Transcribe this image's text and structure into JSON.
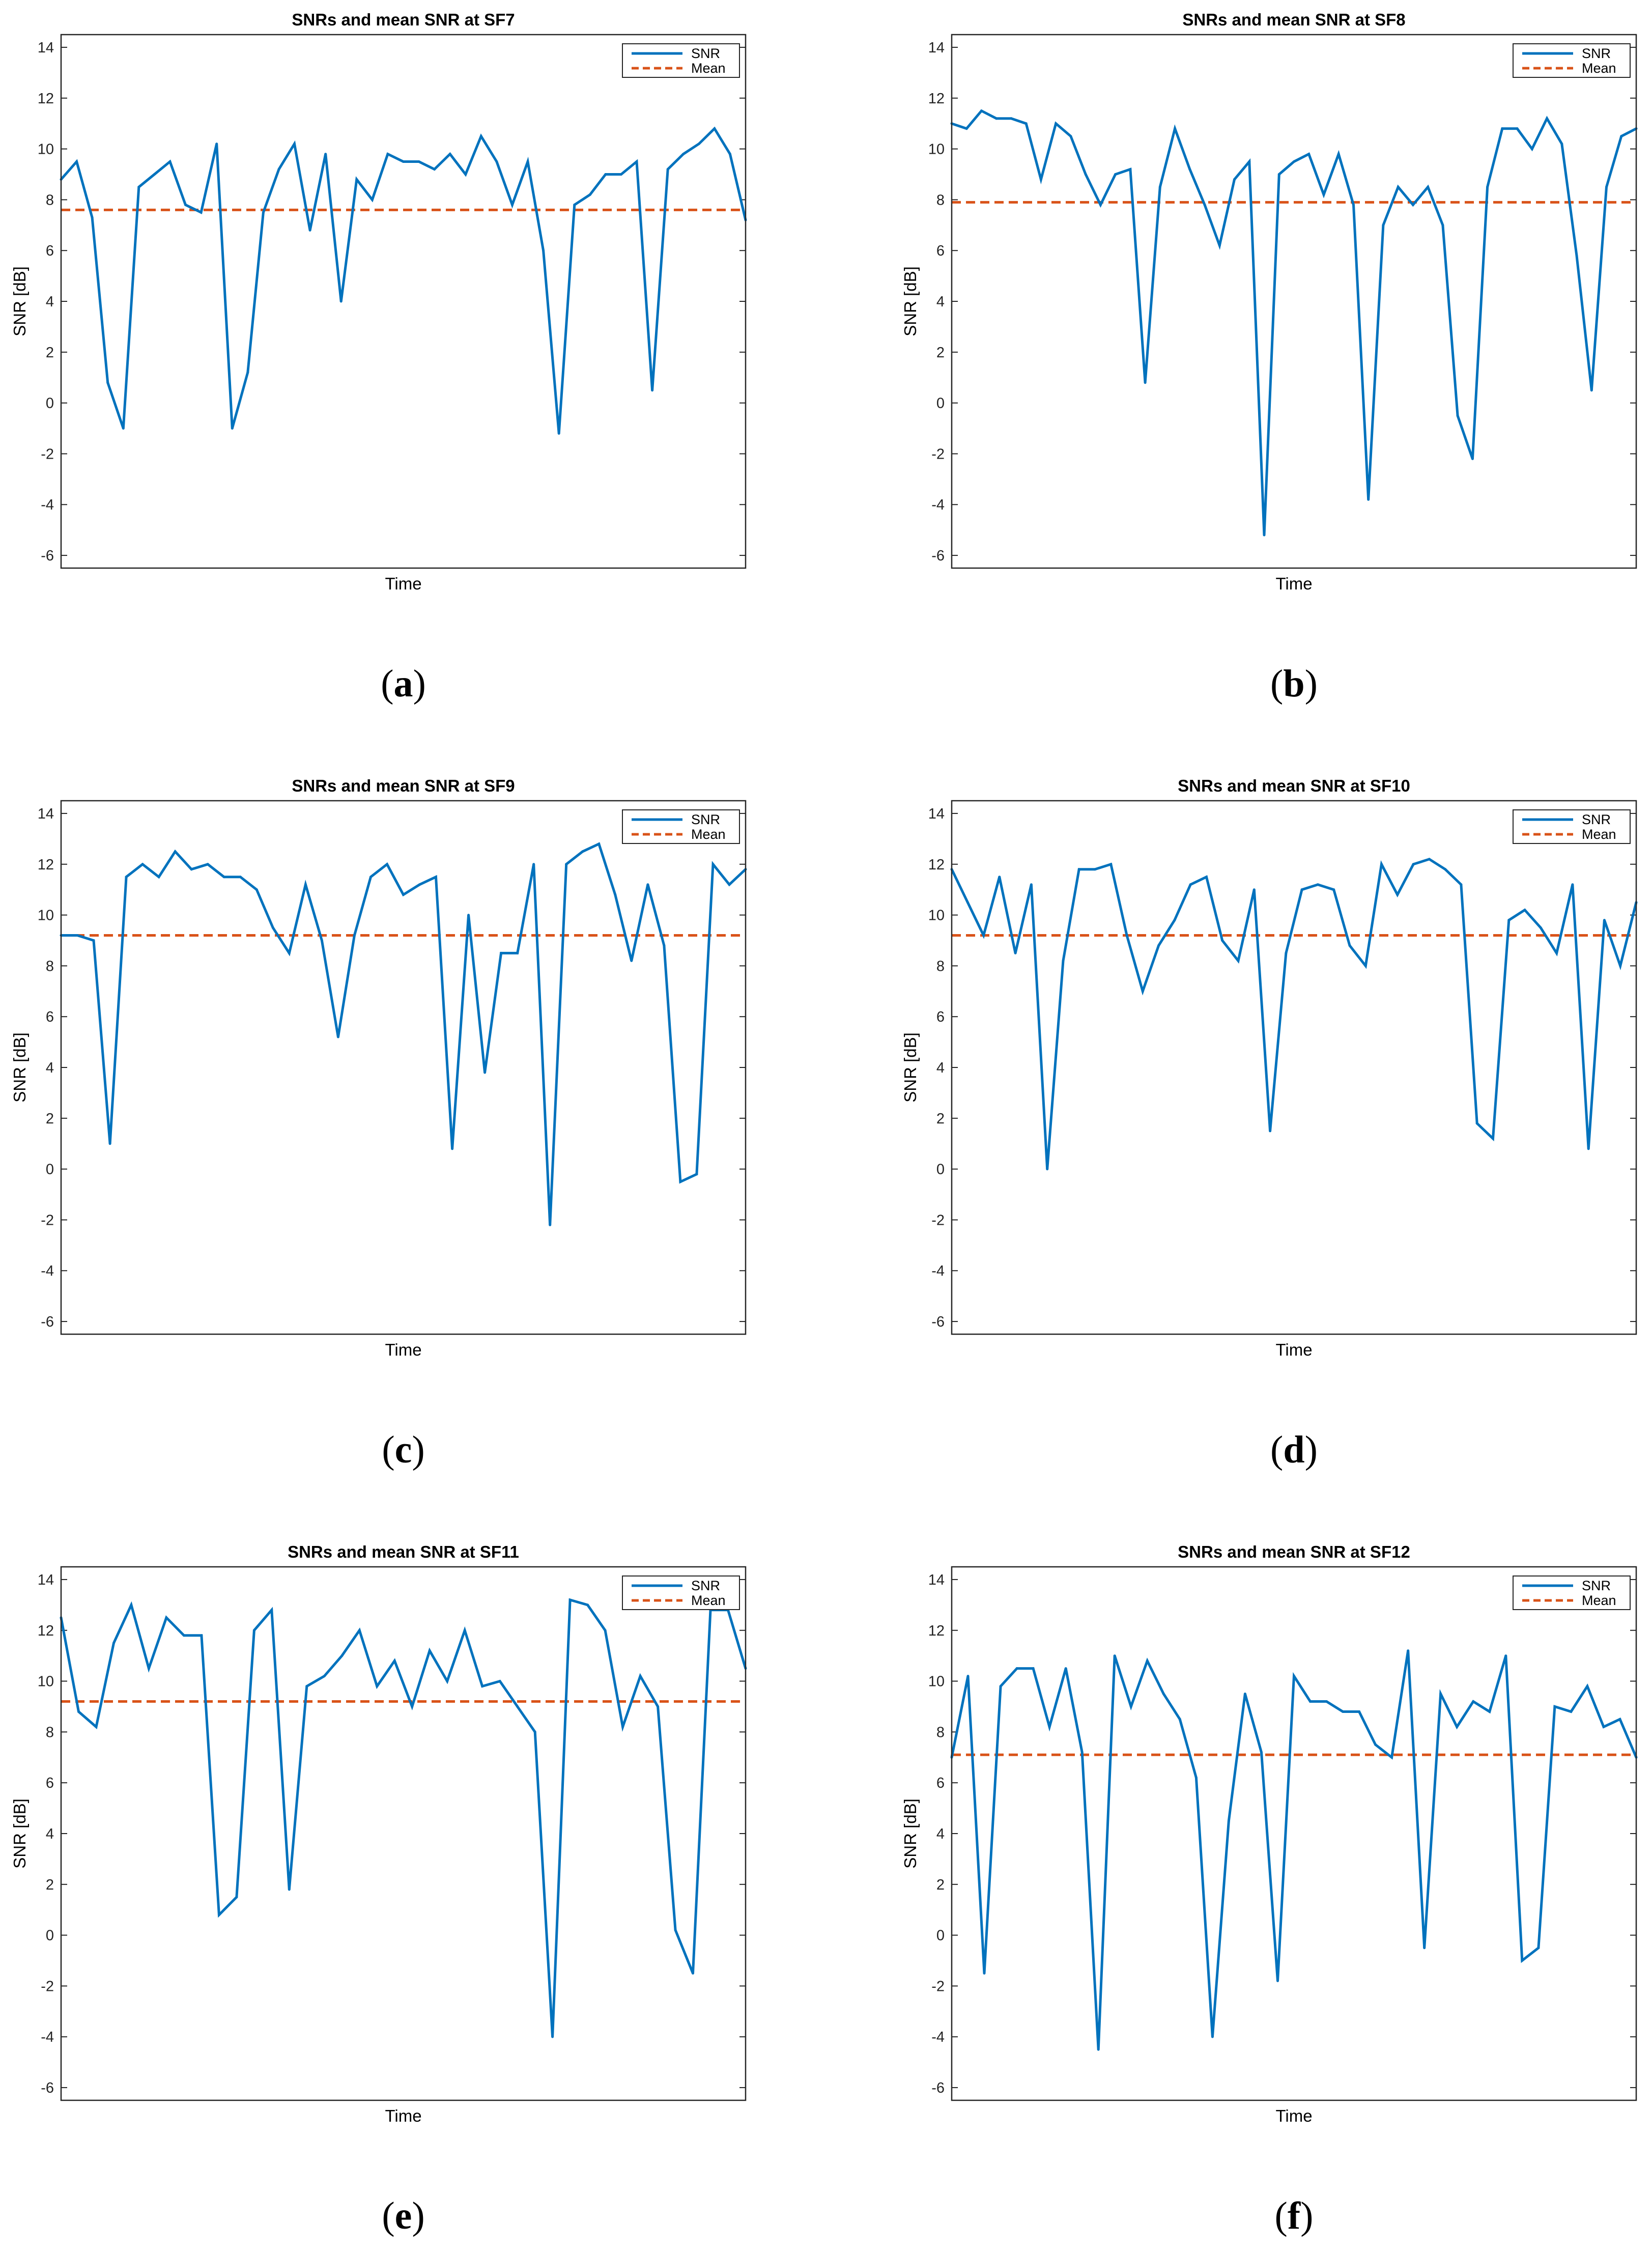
{
  "chart_data": [
    {
      "id": "a",
      "type": "line",
      "title": "SNRs and mean SNR at SF7",
      "xlabel": "Time",
      "ylabel": "SNR [dB]",
      "ylim": [
        -6.5,
        14.5
      ],
      "yticks": [
        -6,
        -4,
        -2,
        0,
        2,
        4,
        6,
        8,
        10,
        12,
        14
      ],
      "legend": {
        "position": "top-right",
        "entries": [
          "SNR",
          "Mean"
        ]
      },
      "caption": {
        "letter": "a",
        "open": "(",
        "close": ")"
      },
      "series": [
        {
          "name": "SNR",
          "color": "#0072BD",
          "style": "solid",
          "values": [
            8.8,
            9.5,
            7.3,
            0.8,
            -1.0,
            8.5,
            9.0,
            9.5,
            7.8,
            7.5,
            10.2,
            -1.0,
            1.2,
            7.5,
            9.2,
            10.2,
            6.8,
            9.8,
            4.0,
            8.8,
            8.0,
            9.8,
            9.5,
            9.5,
            9.2,
            9.8,
            9.0,
            10.5,
            9.5,
            7.8,
            9.5,
            6.0,
            -1.2,
            7.8,
            8.2,
            9.0,
            9.0,
            9.5,
            0.5,
            9.2,
            9.8,
            10.2,
            10.8,
            9.8,
            7.2
          ]
        },
        {
          "name": "Mean",
          "color": "#D95319",
          "style": "dashed",
          "value": 7.6
        }
      ]
    },
    {
      "id": "b",
      "type": "line",
      "title": "SNRs and mean SNR at SF8",
      "xlabel": "Time",
      "ylabel": "SNR [dB]",
      "ylim": [
        -6.5,
        14.5
      ],
      "yticks": [
        -6,
        -4,
        -2,
        0,
        2,
        4,
        6,
        8,
        10,
        12,
        14
      ],
      "legend": {
        "position": "top-right",
        "entries": [
          "SNR",
          "Mean"
        ]
      },
      "caption": {
        "letter": "b",
        "open": "(",
        "close": ")"
      },
      "series": [
        {
          "name": "SNR",
          "color": "#0072BD",
          "style": "solid",
          "values": [
            11.0,
            10.8,
            11.5,
            11.2,
            11.2,
            11.0,
            8.8,
            11.0,
            10.5,
            9.0,
            7.8,
            9.0,
            9.2,
            0.8,
            8.5,
            10.8,
            9.2,
            7.8,
            6.2,
            8.8,
            9.5,
            -5.2,
            9.0,
            9.5,
            9.8,
            8.2,
            9.8,
            7.8,
            -3.8,
            7.0,
            8.5,
            7.8,
            8.5,
            7.0,
            -0.5,
            -2.2,
            8.5,
            10.8,
            10.8,
            10.0,
            11.2,
            10.2,
            5.8,
            0.5,
            8.5,
            10.5,
            10.8
          ]
        },
        {
          "name": "Mean",
          "color": "#D95319",
          "style": "dashed",
          "value": 7.9
        }
      ]
    },
    {
      "id": "c",
      "type": "line",
      "title": "SNRs and mean SNR at SF9",
      "xlabel": "Time",
      "ylabel": "SNR [dB]",
      "ylim": [
        -6.5,
        14.5
      ],
      "yticks": [
        -6,
        -4,
        -2,
        0,
        2,
        4,
        6,
        8,
        10,
        12,
        14
      ],
      "legend": {
        "position": "top-right",
        "entries": [
          "SNR",
          "Mean"
        ]
      },
      "caption": {
        "letter": "c",
        "open": "(",
        "close": ")"
      },
      "series": [
        {
          "name": "SNR",
          "color": "#0072BD",
          "style": "solid",
          "values": [
            9.2,
            9.2,
            9.0,
            1.0,
            11.5,
            12.0,
            11.5,
            12.5,
            11.8,
            12.0,
            11.5,
            11.5,
            11.0,
            9.5,
            8.5,
            11.2,
            9.0,
            5.2,
            9.2,
            11.5,
            12.0,
            10.8,
            11.2,
            11.5,
            0.8,
            10.0,
            3.8,
            8.5,
            8.5,
            12.0,
            -2.2,
            12.0,
            12.5,
            12.8,
            10.8,
            8.2,
            11.2,
            8.8,
            -0.5,
            -0.2,
            12.0,
            11.2,
            11.8
          ]
        },
        {
          "name": "Mean",
          "color": "#D95319",
          "style": "dashed",
          "value": 9.2
        }
      ]
    },
    {
      "id": "d",
      "type": "line",
      "title": "SNRs and mean SNR at SF10",
      "xlabel": "Time",
      "ylabel": "SNR [dB]",
      "ylim": [
        -6.5,
        14.5
      ],
      "yticks": [
        -6,
        -4,
        -2,
        0,
        2,
        4,
        6,
        8,
        10,
        12,
        14
      ],
      "legend": {
        "position": "top-right",
        "entries": [
          "SNR",
          "Mean"
        ]
      },
      "caption": {
        "letter": "d",
        "open": "(",
        "close": ")"
      },
      "series": [
        {
          "name": "SNR",
          "color": "#0072BD",
          "style": "solid",
          "values": [
            11.8,
            10.5,
            9.2,
            11.5,
            8.5,
            11.2,
            0.0,
            8.2,
            11.8,
            11.8,
            12.0,
            9.2,
            7.0,
            8.8,
            9.8,
            11.2,
            11.5,
            9.0,
            8.2,
            11.0,
            1.5,
            8.5,
            11.0,
            11.2,
            11.0,
            8.8,
            8.0,
            12.0,
            10.8,
            12.0,
            12.2,
            11.8,
            11.2,
            1.8,
            1.2,
            9.8,
            10.2,
            9.5,
            8.5,
            11.2,
            0.8,
            9.8,
            8.0,
            10.5
          ]
        },
        {
          "name": "Mean",
          "color": "#D95319",
          "style": "dashed",
          "value": 9.2
        }
      ]
    },
    {
      "id": "e",
      "type": "line",
      "title": "SNRs and mean SNR at SF11",
      "xlabel": "Time",
      "ylabel": "SNR [dB]",
      "ylim": [
        -6.5,
        14.5
      ],
      "yticks": [
        -6,
        -4,
        -2,
        0,
        2,
        4,
        6,
        8,
        10,
        12,
        14
      ],
      "legend": {
        "position": "top-right",
        "entries": [
          "SNR",
          "Mean"
        ]
      },
      "caption": {
        "letter": "e",
        "open": "(",
        "close": ")"
      },
      "series": [
        {
          "name": "SNR",
          "color": "#0072BD",
          "style": "solid",
          "values": [
            12.5,
            8.8,
            8.2,
            11.5,
            13.0,
            10.5,
            12.5,
            11.8,
            11.8,
            0.8,
            1.5,
            12.0,
            12.8,
            1.8,
            9.8,
            10.2,
            11.0,
            12.0,
            9.8,
            10.8,
            9.0,
            11.2,
            10.0,
            12.0,
            9.8,
            10.0,
            9.0,
            8.0,
            -4.0,
            13.2,
            13.0,
            12.0,
            8.2,
            10.2,
            9.0,
            0.2,
            -1.5,
            12.8,
            12.8,
            10.5
          ]
        },
        {
          "name": "Mean",
          "color": "#D95319",
          "style": "dashed",
          "value": 9.2
        }
      ]
    },
    {
      "id": "f",
      "type": "line",
      "title": "SNRs and mean SNR at SF12",
      "xlabel": "Time",
      "ylabel": "SNR [dB]",
      "ylim": [
        -6.5,
        14.5
      ],
      "yticks": [
        -6,
        -4,
        -2,
        0,
        2,
        4,
        6,
        8,
        10,
        12,
        14
      ],
      "legend": {
        "position": "top-right",
        "entries": [
          "SNR",
          "Mean"
        ]
      },
      "caption": {
        "letter": "f",
        "open": "(",
        "close": ")"
      },
      "series": [
        {
          "name": "SNR",
          "color": "#0072BD",
          "style": "solid",
          "values": [
            7.0,
            10.2,
            -1.5,
            9.8,
            10.5,
            10.5,
            8.2,
            10.5,
            7.2,
            -4.5,
            11.0,
            9.0,
            10.8,
            9.5,
            8.5,
            6.2,
            -4.0,
            4.5,
            9.5,
            7.2,
            -1.8,
            10.2,
            9.2,
            9.2,
            8.8,
            8.8,
            7.5,
            7.0,
            11.2,
            -0.5,
            9.5,
            8.2,
            9.2,
            8.8,
            11.0,
            -1.0,
            -0.5,
            9.0,
            8.8,
            9.8,
            8.2,
            8.5,
            7.0
          ]
        },
        {
          "name": "Mean",
          "color": "#D95319",
          "style": "dashed",
          "value": 7.1
        }
      ]
    }
  ]
}
